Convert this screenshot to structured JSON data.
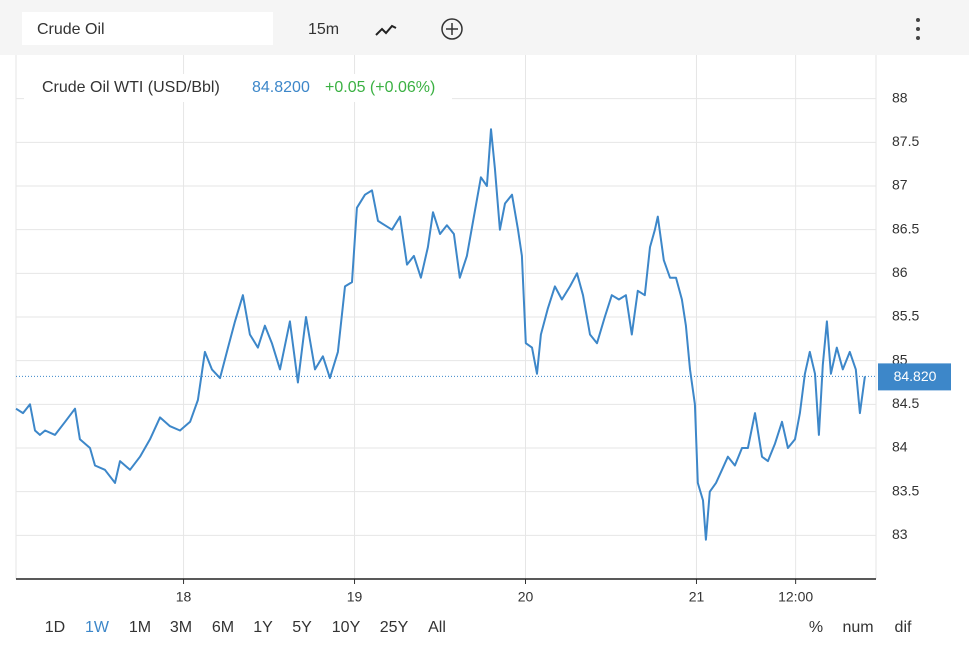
{
  "toolbar": {
    "symbol": "Crude Oil",
    "interval": "15m"
  },
  "ranges": [
    "1D",
    "1W",
    "1M",
    "3M",
    "6M",
    "1Y",
    "5Y",
    "10Y",
    "25Y",
    "All"
  ],
  "modes": [
    "%",
    "num",
    "dif"
  ],
  "chart_data": {
    "type": "line",
    "price": "84.8200",
    "change": "+0.05 (+0.06%)",
    "last_price": {
      "value": 84.82,
      "label": "84.820"
    },
    "x": [
      17.02,
      17.061,
      17.102,
      17.131,
      17.16,
      17.19,
      17.248,
      17.307,
      17.365,
      17.394,
      17.453,
      17.482,
      17.54,
      17.599,
      17.628,
      17.687,
      17.745,
      17.804,
      17.862,
      17.921,
      17.979,
      18.038,
      18.084,
      18.125,
      18.166,
      18.213,
      18.26,
      18.301,
      18.347,
      18.388,
      18.435,
      18.476,
      18.517,
      18.564,
      18.622,
      18.669,
      18.716,
      18.769,
      18.815,
      18.856,
      18.903,
      18.944,
      18.985,
      19.014,
      19.061,
      19.102,
      19.137,
      19.178,
      19.219,
      19.266,
      19.307,
      19.347,
      19.388,
      19.429,
      19.459,
      19.5,
      19.54,
      19.581,
      19.616,
      19.657,
      19.698,
      19.739,
      19.774,
      19.798,
      19.821,
      19.85,
      19.88,
      19.921,
      19.956,
      19.979,
      20.002,
      20.038,
      20.067,
      20.09,
      20.131,
      20.172,
      20.213,
      20.26,
      20.301,
      20.336,
      20.377,
      20.418,
      20.464,
      20.505,
      20.546,
      20.587,
      20.622,
      20.657,
      20.698,
      20.728,
      20.757,
      20.774,
      20.809,
      20.845,
      20.88,
      20.915,
      20.938,
      20.962,
      20.991,
      21.008,
      21.038,
      21.055,
      21.078,
      21.114,
      21.149,
      21.184,
      21.225,
      21.266,
      21.301,
      21.342,
      21.383,
      21.418,
      21.459,
      21.5,
      21.535,
      21.576,
      21.605,
      21.634,
      21.663,
      21.693,
      21.716,
      21.739,
      21.763,
      21.786,
      21.821,
      21.856,
      21.897,
      21.932,
      21.956,
      21.985
    ],
    "series": [
      {
        "name": "Crude Oil WTI (USD/Bbl)",
        "color": "#3d87c9",
        "values": [
          84.45,
          84.4,
          84.5,
          84.2,
          84.15,
          84.2,
          84.15,
          84.3,
          84.45,
          84.1,
          84.0,
          83.8,
          83.75,
          83.6,
          83.85,
          83.75,
          83.9,
          84.1,
          84.35,
          84.25,
          84.2,
          84.3,
          84.55,
          85.1,
          84.9,
          84.8,
          85.15,
          85.45,
          85.75,
          85.3,
          85.15,
          85.4,
          85.2,
          84.9,
          85.45,
          84.75,
          85.5,
          84.9,
          85.05,
          84.8,
          85.1,
          85.85,
          85.9,
          86.75,
          86.9,
          86.95,
          86.6,
          86.55,
          86.5,
          86.65,
          86.1,
          86.2,
          85.95,
          86.3,
          86.7,
          86.45,
          86.55,
          86.45,
          85.95,
          86.2,
          86.65,
          87.1,
          87.0,
          87.65,
          87.2,
          86.5,
          86.8,
          86.9,
          86.5,
          86.2,
          85.2,
          85.15,
          84.85,
          85.3,
          85.6,
          85.85,
          85.7,
          85.85,
          86.0,
          85.75,
          85.3,
          85.2,
          85.5,
          85.75,
          85.7,
          85.75,
          85.3,
          85.8,
          85.75,
          86.3,
          86.5,
          86.65,
          86.15,
          85.95,
          85.95,
          85.7,
          85.4,
          84.9,
          84.5,
          83.6,
          83.4,
          82.95,
          83.5,
          83.6,
          83.75,
          83.9,
          83.8,
          84.0,
          84.0,
          84.4,
          83.9,
          83.85,
          84.05,
          84.3,
          84.0,
          84.1,
          84.4,
          84.85,
          85.1,
          84.85,
          84.15,
          84.95,
          85.45,
          84.85,
          85.15,
          84.9,
          85.1,
          84.9,
          84.4,
          84.82
        ]
      }
    ],
    "xlim": [
      17.02,
      22.05
    ],
    "xticks": [
      18,
      19,
      20,
      21,
      {
        "value": 21.58,
        "label": "12:00"
      }
    ],
    "ylim": [
      82.5,
      88.5
    ],
    "yticks": [
      83,
      83.5,
      84,
      84.5,
      85,
      85.5,
      86,
      86.5,
      87,
      87.5,
      88
    ],
    "grid": true
  }
}
